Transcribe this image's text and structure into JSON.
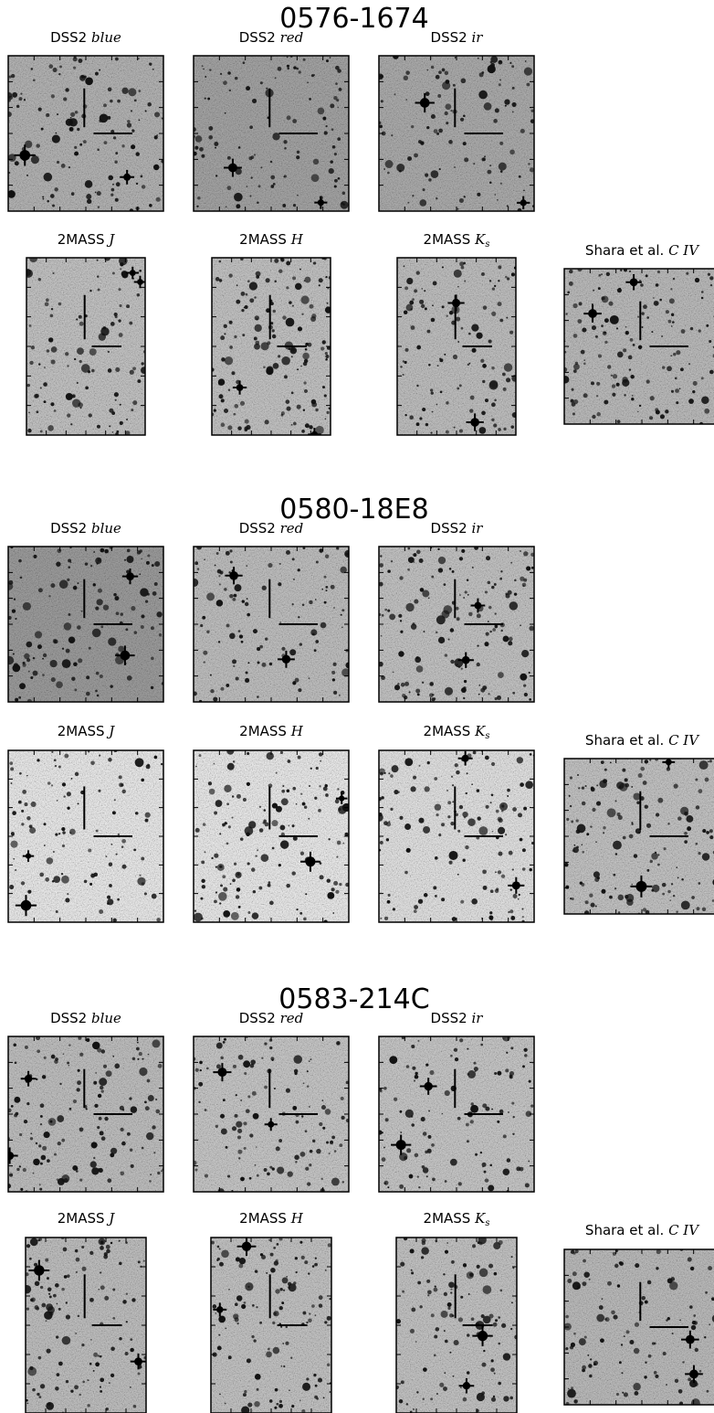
{
  "figure": {
    "blocks": [
      {
        "title": "0576-1674",
        "panels": [
          {
            "survey": "DSS2",
            "band": "blue"
          },
          {
            "survey": "DSS2",
            "band": "red"
          },
          {
            "survey": "DSS2",
            "band": "ir"
          },
          {
            "survey": "2MASS",
            "band": "J"
          },
          {
            "survey": "2MASS",
            "band": "H"
          },
          {
            "survey": "2MASS",
            "band": "K",
            "band_sub": "s"
          },
          {
            "survey": "Shara et al.",
            "band": "C IV"
          }
        ]
      },
      {
        "title": "0580-18E8",
        "panels": [
          {
            "survey": "DSS2",
            "band": "blue"
          },
          {
            "survey": "DSS2",
            "band": "red"
          },
          {
            "survey": "DSS2",
            "band": "ir"
          },
          {
            "survey": "2MASS",
            "band": "J"
          },
          {
            "survey": "2MASS",
            "band": "H"
          },
          {
            "survey": "2MASS",
            "band": "K",
            "band_sub": "s"
          },
          {
            "survey": "Shara et al.",
            "band": "C IV"
          }
        ]
      },
      {
        "title": "0583-214C",
        "panels": [
          {
            "survey": "DSS2",
            "band": "blue"
          },
          {
            "survey": "DSS2",
            "band": "red"
          },
          {
            "survey": "DSS2",
            "band": "ir"
          },
          {
            "survey": "2MASS",
            "band": "J"
          },
          {
            "survey": "2MASS",
            "band": "H"
          },
          {
            "survey": "2MASS",
            "band": "K",
            "band_sub": "s"
          },
          {
            "survey": "Shara et al.",
            "band": "C IV"
          }
        ]
      }
    ]
  }
}
